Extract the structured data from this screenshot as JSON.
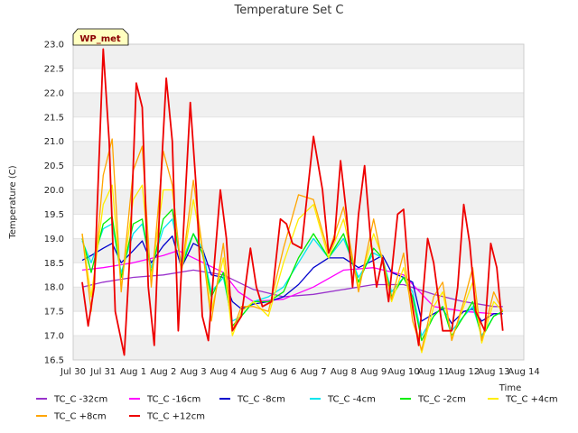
{
  "chart_data": {
    "type": "line",
    "title": "Temperature Set C",
    "xlabel": "Time",
    "ylabel": "Temperature (C)",
    "xlim": [
      0,
      15
    ],
    "ylim": [
      16.5,
      23.0
    ],
    "x_ticks": [
      {
        "x": 0,
        "label": "Jul 30"
      },
      {
        "x": 1,
        "label": "Jul 31"
      },
      {
        "x": 2,
        "label": "Aug 1"
      },
      {
        "x": 3,
        "label": "Aug 2"
      },
      {
        "x": 4,
        "label": "Aug 3"
      },
      {
        "x": 5,
        "label": "Aug 4"
      },
      {
        "x": 6,
        "label": "Aug 5"
      },
      {
        "x": 7,
        "label": "Aug 6"
      },
      {
        "x": 8,
        "label": "Aug 7"
      },
      {
        "x": 9,
        "label": "Aug 8"
      },
      {
        "x": 10,
        "label": "Aug 9"
      },
      {
        "x": 11,
        "label": "Aug 10"
      },
      {
        "x": 12,
        "label": "Aug 11"
      },
      {
        "x": 13,
        "label": "Aug 12"
      },
      {
        "x": 14,
        "label": "Aug 13"
      },
      {
        "x": 15,
        "label": "Aug 14"
      }
    ],
    "y_ticks": [
      16.5,
      17.0,
      17.5,
      18.0,
      18.5,
      19.0,
      19.5,
      20.0,
      20.5,
      21.0,
      21.5,
      22.0,
      22.5,
      23.0
    ],
    "grid": "horizontal bands",
    "legend_position": "bottom",
    "annotation": "WP_met",
    "series": [
      {
        "name": "TC_C -32cm",
        "color": "#9932cc",
        "x": [
          0.3,
          1,
          2,
          3,
          4,
          5,
          6,
          7,
          8,
          9,
          10,
          11,
          12,
          13,
          14,
          14.3
        ],
        "y": [
          18.0,
          18.1,
          18.2,
          18.25,
          18.35,
          18.25,
          17.95,
          17.8,
          17.85,
          17.95,
          18.05,
          18.05,
          17.85,
          17.7,
          17.6,
          17.6
        ]
      },
      {
        "name": "TC_C -16cm",
        "color": "#ff00ff",
        "x": [
          0.3,
          1,
          2,
          3,
          3.5,
          4,
          5,
          5.5,
          6,
          7,
          8,
          9,
          10,
          11,
          12,
          13,
          14,
          14.3
        ],
        "y": [
          18.35,
          18.4,
          18.5,
          18.65,
          18.75,
          18.6,
          18.3,
          17.9,
          17.7,
          17.75,
          18.0,
          18.35,
          18.4,
          18.25,
          17.6,
          17.5,
          17.45,
          17.45
        ]
      },
      {
        "name": "TC_C -8cm",
        "color": "#0000cd",
        "x": [
          0.3,
          0.6,
          1,
          1.3,
          1.6,
          2,
          2.3,
          2.6,
          3,
          3.3,
          3.6,
          4,
          4.3,
          4.6,
          5,
          5.3,
          5.6,
          6,
          6.5,
          7,
          7.5,
          8,
          8.5,
          9,
          9.5,
          10,
          10.3,
          10.6,
          11,
          11.3,
          11.6,
          12,
          12.3,
          12.6,
          13,
          13.3,
          13.6,
          14,
          14.3
        ],
        "y": [
          18.55,
          18.65,
          18.8,
          18.9,
          18.5,
          18.75,
          18.95,
          18.5,
          18.85,
          19.05,
          18.4,
          18.9,
          18.8,
          18.25,
          18.2,
          17.7,
          17.55,
          17.65,
          17.7,
          17.8,
          18.05,
          18.4,
          18.6,
          18.6,
          18.4,
          18.55,
          18.65,
          18.3,
          18.2,
          18.1,
          17.3,
          17.45,
          17.55,
          17.25,
          17.5,
          17.55,
          17.3,
          17.45,
          17.45
        ]
      },
      {
        "name": "TC_C -4cm",
        "color": "#00e5ee",
        "x": [
          0.3,
          0.6,
          1,
          1.3,
          1.6,
          2,
          2.3,
          2.6,
          3,
          3.3,
          3.6,
          4,
          4.3,
          4.6,
          5,
          5.3,
          5.6,
          6,
          6.5,
          7,
          7.5,
          8,
          8.5,
          9,
          9.5,
          10,
          10.3,
          10.6,
          11,
          11.3,
          11.6,
          12,
          12.3,
          12.6,
          13,
          13.3,
          13.6,
          14,
          14.3
        ],
        "y": [
          18.95,
          18.5,
          19.2,
          19.3,
          18.3,
          19.1,
          19.3,
          18.4,
          19.2,
          19.4,
          18.5,
          19.1,
          18.8,
          17.9,
          18.2,
          17.3,
          17.4,
          17.7,
          17.8,
          18.0,
          18.5,
          19.0,
          18.6,
          19.0,
          18.2,
          18.7,
          18.6,
          17.9,
          18.2,
          17.9,
          17.0,
          17.4,
          17.6,
          17.1,
          17.4,
          17.6,
          17.0,
          17.4,
          17.5
        ]
      },
      {
        "name": "TC_C -2cm",
        "color": "#00ee00",
        "x": [
          0.3,
          0.6,
          1,
          1.3,
          1.6,
          2,
          2.3,
          2.6,
          3,
          3.3,
          3.6,
          4,
          4.3,
          4.6,
          5,
          5.3,
          5.6,
          6,
          6.5,
          7,
          7.5,
          8,
          8.5,
          9,
          9.5,
          10,
          10.3,
          10.6,
          11,
          11.3,
          11.6,
          12,
          12.3,
          12.6,
          13,
          13.3,
          13.6,
          14,
          14.3
        ],
        "y": [
          19.0,
          18.3,
          19.3,
          19.45,
          18.2,
          19.3,
          19.4,
          18.3,
          19.4,
          19.6,
          18.4,
          19.1,
          18.7,
          17.8,
          18.3,
          17.2,
          17.4,
          17.7,
          17.7,
          17.9,
          18.6,
          19.1,
          18.6,
          19.1,
          18.1,
          18.8,
          18.6,
          17.8,
          18.2,
          17.8,
          16.9,
          17.4,
          17.6,
          17.0,
          17.4,
          17.7,
          16.95,
          17.4,
          17.5
        ]
      },
      {
        "name": "TC_C +4cm",
        "color": "#ffee00",
        "x": [
          0.3,
          0.6,
          1,
          1.3,
          1.6,
          2,
          2.3,
          2.6,
          3,
          3.3,
          3.6,
          4,
          4.3,
          4.6,
          5,
          5.3,
          5.6,
          6,
          6.5,
          7,
          7.5,
          8,
          8.5,
          9,
          9.5,
          10,
          10.3,
          10.6,
          11,
          11.3,
          11.6,
          12,
          12.3,
          12.6,
          13,
          13.3,
          13.6,
          14,
          14.3
        ],
        "y": [
          19.1,
          17.8,
          19.7,
          20.1,
          18.0,
          19.8,
          20.1,
          18.2,
          20.0,
          20.0,
          18.3,
          19.8,
          18.8,
          17.5,
          18.6,
          17.0,
          17.5,
          17.7,
          17.4,
          18.5,
          19.4,
          19.7,
          18.6,
          19.4,
          18.0,
          19.1,
          18.6,
          17.7,
          18.4,
          17.5,
          16.65,
          17.6,
          17.9,
          16.95,
          17.6,
          18.1,
          16.85,
          17.7,
          17.5
        ]
      },
      {
        "name": "TC_C +8cm",
        "color": "#ffa500",
        "x": [
          0.3,
          0.6,
          1,
          1.3,
          1.6,
          2,
          2.3,
          2.6,
          3,
          3.3,
          3.6,
          4,
          4.3,
          4.6,
          5,
          5.3,
          5.6,
          6,
          6.5,
          7,
          7.5,
          8,
          8.5,
          9,
          9.5,
          10,
          10.3,
          10.6,
          11,
          11.3,
          11.6,
          12,
          12.3,
          12.6,
          13,
          13.3,
          13.6,
          14,
          14.3
        ],
        "y": [
          19.1,
          17.5,
          20.3,
          21.05,
          17.9,
          20.4,
          20.9,
          18.0,
          20.8,
          20.1,
          18.3,
          20.2,
          18.8,
          17.3,
          18.9,
          17.1,
          17.6,
          17.6,
          17.5,
          18.8,
          19.9,
          19.8,
          18.7,
          19.65,
          17.9,
          19.4,
          18.5,
          17.75,
          18.7,
          17.3,
          16.7,
          17.8,
          18.1,
          16.9,
          17.7,
          18.4,
          16.9,
          17.9,
          17.5
        ]
      },
      {
        "name": "TC_C +12cm",
        "color": "#ee0000",
        "x": [
          0.3,
          0.5,
          0.7,
          1.0,
          1.2,
          1.4,
          1.7,
          1.9,
          2.1,
          2.3,
          2.5,
          2.7,
          2.9,
          3.1,
          3.3,
          3.5,
          3.7,
          3.9,
          4.1,
          4.3,
          4.5,
          4.7,
          4.9,
          5.1,
          5.3,
          5.6,
          5.9,
          6.1,
          6.3,
          6.6,
          6.9,
          7.1,
          7.3,
          7.6,
          8.0,
          8.3,
          8.5,
          8.7,
          8.9,
          9.1,
          9.3,
          9.5,
          9.7,
          9.9,
          10.1,
          10.3,
          10.5,
          10.8,
          11.0,
          11.2,
          11.5,
          11.8,
          12.0,
          12.3,
          12.6,
          12.8,
          13.0,
          13.2,
          13.4,
          13.7,
          13.9,
          14.1,
          14.3
        ],
        "y": [
          18.1,
          17.2,
          18.0,
          22.9,
          21.0,
          17.5,
          16.6,
          18.8,
          22.2,
          21.7,
          18.0,
          16.8,
          20.0,
          22.3,
          21.0,
          17.1,
          19.5,
          21.8,
          20.0,
          17.4,
          16.9,
          18.5,
          20.0,
          19.0,
          17.1,
          17.4,
          18.8,
          18.0,
          17.6,
          17.7,
          19.4,
          19.3,
          18.9,
          18.8,
          21.1,
          20.0,
          18.7,
          19.0,
          20.6,
          19.5,
          18.0,
          19.5,
          20.5,
          19.0,
          18.0,
          18.6,
          17.7,
          19.5,
          19.6,
          18.0,
          16.8,
          19.0,
          18.5,
          17.1,
          17.1,
          18.0,
          19.7,
          18.9,
          17.5,
          17.1,
          18.9,
          18.4,
          17.1
        ]
      }
    ]
  }
}
